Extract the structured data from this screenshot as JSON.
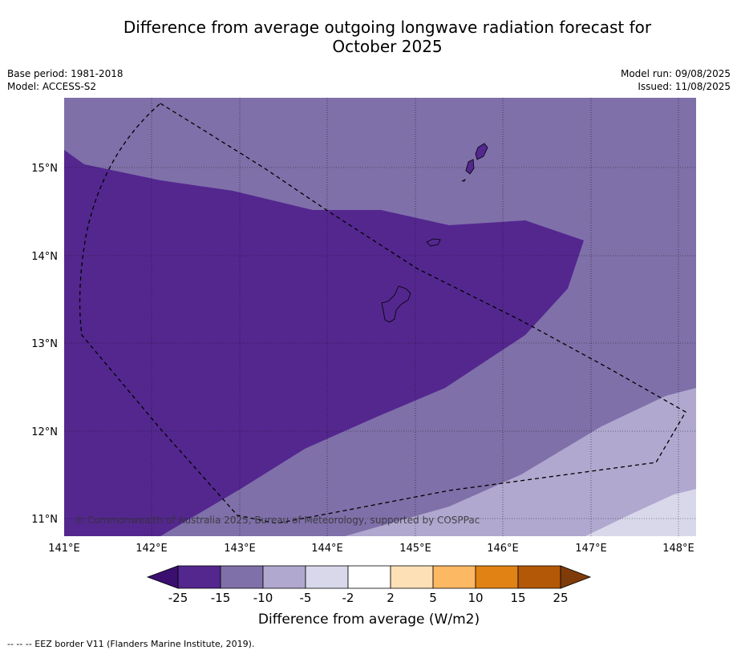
{
  "title_line1": "Difference from average outgoing longwave radiation forecast for",
  "title_line2": "October 2025",
  "base_period": "Base period: 1981-2018",
  "model": "Model: ACCESS-S2",
  "model_run": "Model run: 09/08/2025",
  "issued": "Issued: 11/08/2025",
  "copyright": "© Commonwealth of Australia 2025, Bureau of Meteorology, supported by COSPPac",
  "x_ticks": [
    "141°E",
    "142°E",
    "143°E",
    "144°E",
    "145°E",
    "146°E",
    "147°E",
    "148°E"
  ],
  "y_ticks": [
    "15°N",
    "14°N",
    "13°N",
    "12°N",
    "11°N"
  ],
  "colorbar": {
    "label": "Difference from average (W/m2)",
    "tick_labels": [
      "-25",
      "-15",
      "-10",
      "-5",
      "-2",
      "2",
      "5",
      "10",
      "15",
      "25"
    ],
    "colors": [
      "#3b0f70",
      "#54278f",
      "#7f70a9",
      "#b0a8cf",
      "#d8d8ea",
      "#ffffff",
      "#fee0b6",
      "#fdb863",
      "#e08214",
      "#b35806",
      "#7f3b08"
    ]
  },
  "footer": "--  --  -- EEZ border V11 (Flanders Marine Institute, 2019).",
  "map_data": {
    "lon_range": [
      141,
      148.2
    ],
    "lat_range": [
      10.8,
      15.8
    ],
    "regions_visible": [
      "-25 to -15",
      "-15 to -10",
      "-10 to -5",
      "-5 to -2"
    ]
  }
}
